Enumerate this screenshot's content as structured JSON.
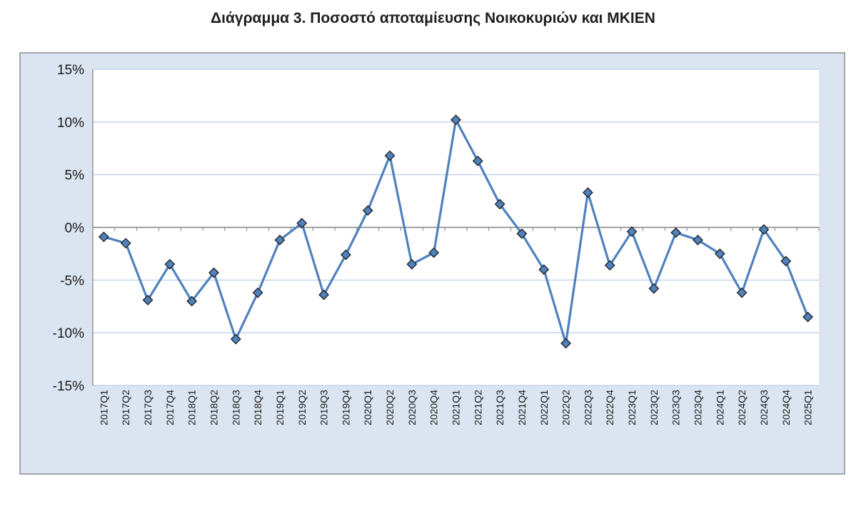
{
  "title": "Διάγραμμα 3. Ποσοστό αποταμίευσης Νοικοκυριών και ΜΚΙΕΝ",
  "colors": {
    "outer_background": "#dbe5f1",
    "plot_background": "#ffffff",
    "gridline": "#c6d4ea",
    "series_line": "#4f81bd",
    "marker_fill": "#4f81bd",
    "marker_stroke": "#1f1f1f",
    "axis": "#808080"
  },
  "chart_data": {
    "type": "line",
    "title": "Διάγραμμα 3. Ποσοστό αποταμίευσης Νοικοκυριών και ΜΚΙΕΝ",
    "xlabel": "",
    "ylabel": "",
    "ylim": [
      -15,
      15
    ],
    "y_ticks": [
      15,
      10,
      5,
      0,
      -5,
      -10,
      -15
    ],
    "y_tick_labels": [
      "15%",
      "10%",
      "5%",
      "0%",
      "-5%",
      "-10%",
      "-15%"
    ],
    "grid": "horizontal",
    "legend": "none",
    "marker": "diamond",
    "categories": [
      "2017Q1",
      "2017Q2",
      "2017Q3",
      "2017Q4",
      "2018Q1",
      "2018Q2",
      "2018Q3",
      "2018Q4",
      "2019Q1",
      "2019Q2",
      "2019Q3",
      "2019Q4",
      "2020Q1",
      "2020Q2",
      "2020Q3",
      "2020Q4",
      "2021Q1",
      "2021Q2",
      "2021Q3",
      "2021Q4",
      "2022Q1",
      "2022Q2",
      "2022Q3",
      "2022Q4",
      "2023Q1",
      "2023Q2",
      "2023Q3",
      "2023Q4",
      "2024Q1",
      "2024Q2",
      "2024Q3",
      "2024Q4",
      "2025Q1"
    ],
    "series": [
      {
        "values": [
          -0.9,
          -1.5,
          -6.9,
          -3.5,
          -7.0,
          -4.3,
          -10.6,
          -6.2,
          -1.2,
          0.4,
          -6.4,
          -2.6,
          1.6,
          6.8,
          -3.5,
          -2.4,
          10.2,
          6.3,
          2.2,
          -0.6,
          -4.0,
          -11.0,
          3.3,
          -3.6,
          -0.4,
          -5.8,
          -0.5,
          -1.2,
          -2.5,
          -6.2,
          -0.2,
          -3.2,
          -8.5
        ]
      }
    ]
  }
}
